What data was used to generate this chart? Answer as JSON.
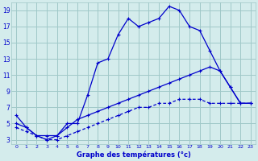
{
  "title": "Graphe des températures (°c)",
  "bg_color": "#d4ecec",
  "grid_color": "#a0c8c8",
  "line_color": "#0000cc",
  "xmin": 0,
  "xmax": 23,
  "ymin": 3,
  "ymax": 19,
  "line1_x": [
    0,
    1,
    2,
    3,
    4,
    5,
    6,
    7,
    8,
    9,
    10,
    11,
    12,
    13,
    14,
    15,
    16,
    17,
    18,
    19,
    20,
    21,
    22,
    23
  ],
  "line1_y": [
    6,
    4.5,
    3.5,
    3,
    3.5,
    5,
    5,
    8.5,
    12.5,
    13,
    16,
    18,
    17,
    17.5,
    18,
    19.5,
    19,
    17,
    16.5,
    14,
    11.5,
    9.5,
    7.5,
    7.5
  ],
  "line2_x": [
    0,
    1,
    2,
    3,
    4,
    5,
    6,
    7,
    8,
    9,
    10,
    11,
    12,
    13,
    14,
    15,
    16,
    17,
    18,
    19,
    20,
    21,
    22,
    23
  ],
  "line2_y": [
    5,
    4.5,
    3.5,
    3.5,
    3.5,
    4.5,
    5.5,
    6,
    6.5,
    7,
    7.5,
    8,
    8.5,
    9,
    9.5,
    10,
    10.5,
    11,
    11.5,
    12,
    11.5,
    9.5,
    7.5,
    7.5
  ],
  "line3_x": [
    0,
    1,
    2,
    3,
    4,
    5,
    6,
    7,
    8,
    9,
    10,
    11,
    12,
    13,
    14,
    15,
    16,
    17,
    18,
    19,
    20,
    21,
    22,
    23
  ],
  "line3_y": [
    4.5,
    4,
    3.5,
    3,
    3,
    3.5,
    4,
    4.5,
    5,
    5.5,
    6,
    6.5,
    7,
    7,
    7.5,
    7.5,
    8,
    8,
    8,
    7.5,
    7.5,
    7.5,
    7.5,
    7.5
  ],
  "yticks": [
    3,
    5,
    7,
    9,
    11,
    13,
    15,
    17,
    19
  ],
  "xticks": [
    0,
    1,
    2,
    3,
    4,
    5,
    6,
    7,
    8,
    9,
    10,
    11,
    12,
    13,
    14,
    15,
    16,
    17,
    18,
    19,
    20,
    21,
    22,
    23
  ]
}
